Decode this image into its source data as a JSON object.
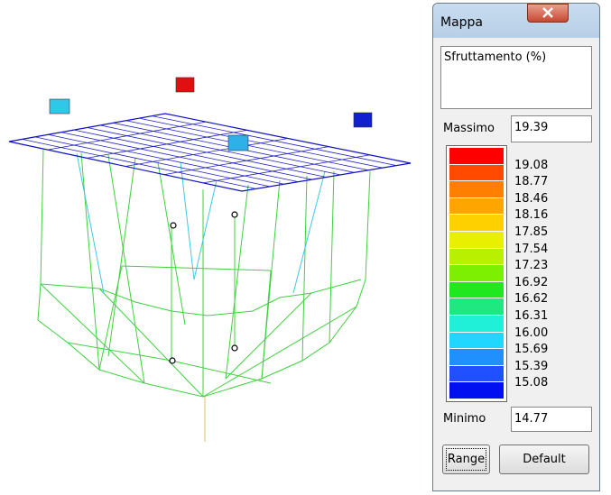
{
  "window": {
    "title": "Mappa",
    "quantity": "Sfruttamento (%)",
    "max_label": "Massimo",
    "max_value": "19.39",
    "min_label": "Minimo",
    "min_value": "14.77",
    "scale": {
      "colors": [
        "#ff0000",
        "#ff4a00",
        "#ff8000",
        "#ffa500",
        "#ffd000",
        "#e8f000",
        "#b8f000",
        "#7cf000",
        "#20e820",
        "#20e880",
        "#20f0d8",
        "#20d8ff",
        "#2090ff",
        "#2050ff",
        "#0010f0"
      ],
      "labels": [
        "19.08",
        "18.77",
        "18.46",
        "18.16",
        "17.85",
        "17.54",
        "17.23",
        "16.92",
        "16.62",
        "16.31",
        "16.00",
        "15.69",
        "15.39",
        "15.08"
      ]
    },
    "buttons": [
      "Range",
      "Default"
    ]
  }
}
